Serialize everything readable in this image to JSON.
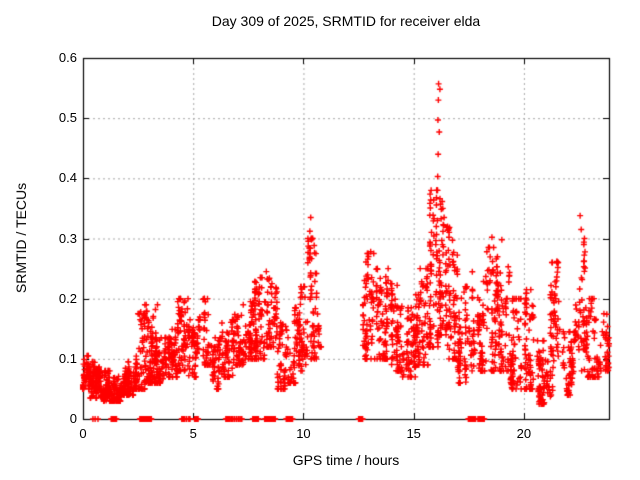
{
  "title": "Day 309 of 2025, SRMTID for receiver elda",
  "x_axis": {
    "label": "GPS time / hours"
  },
  "y_axis": {
    "label": "SRMTID / TECUs"
  },
  "chart_data": {
    "type": "scatter",
    "title": "Day 309 of 2025, SRMTID for receiver elda",
    "xlabel": "GPS time / hours",
    "ylabel": "SRMTID / TECUs",
    "marker": "plus",
    "marker_color": "#ff0000",
    "grid": true,
    "grid_color": "#a8a8a8",
    "border_color": "#000000",
    "xlim": [
      0,
      23.86
    ],
    "ylim": [
      0,
      0.6
    ],
    "x_ticks": [
      {
        "v": 0,
        "t": "0"
      },
      {
        "v": 5,
        "t": "5"
      },
      {
        "v": 10,
        "t": "10"
      },
      {
        "v": 15,
        "t": "15"
      },
      {
        "v": 20,
        "t": "20"
      }
    ],
    "y_ticks": [
      {
        "v": 0,
        "t": "0"
      },
      {
        "v": 0.1,
        "t": "0.1"
      },
      {
        "v": 0.2,
        "t": "0.2"
      },
      {
        "v": 0.3,
        "t": "0.3"
      },
      {
        "v": 0.4,
        "t": "0.4"
      },
      {
        "v": 0.5,
        "t": "0.5"
      },
      {
        "v": 0.6,
        "t": "0.6"
      }
    ],
    "seed": 7,
    "cloud_bins": [
      [
        0.0,
        0.3,
        0.05,
        0.105,
        55
      ],
      [
        0.3,
        0.8,
        0.035,
        0.095,
        95
      ],
      [
        0.8,
        1.3,
        0.03,
        0.08,
        85
      ],
      [
        1.3,
        1.8,
        0.03,
        0.075,
        80
      ],
      [
        1.8,
        2.3,
        0.04,
        0.095,
        75
      ],
      [
        2.3,
        2.8,
        0.05,
        0.175,
        75
      ],
      [
        2.8,
        3.3,
        0.06,
        0.19,
        85
      ],
      [
        3.3,
        3.8,
        0.06,
        0.135,
        70
      ],
      [
        3.8,
        4.3,
        0.07,
        0.155,
        70
      ],
      [
        4.3,
        4.8,
        0.08,
        0.2,
        75
      ],
      [
        4.8,
        5.3,
        0.07,
        0.165,
        60
      ],
      [
        5.3,
        5.8,
        0.09,
        0.2,
        40
      ],
      [
        5.8,
        6.3,
        0.05,
        0.135,
        50
      ],
      [
        6.3,
        6.8,
        0.07,
        0.165,
        60
      ],
      [
        6.8,
        7.3,
        0.09,
        0.19,
        60
      ],
      [
        7.3,
        7.8,
        0.1,
        0.21,
        60
      ],
      [
        7.8,
        8.3,
        0.1,
        0.235,
        65
      ],
      [
        8.3,
        8.8,
        0.12,
        0.245,
        60
      ],
      [
        8.8,
        9.3,
        0.05,
        0.16,
        55
      ],
      [
        9.3,
        9.8,
        0.06,
        0.185,
        55
      ],
      [
        9.8,
        10.2,
        0.08,
        0.22,
        50
      ],
      [
        10.2,
        10.6,
        0.1,
        0.3,
        55
      ],
      [
        10.6,
        10.8,
        0.12,
        0.18,
        12
      ],
      [
        12.7,
        13.3,
        0.1,
        0.275,
        70
      ],
      [
        13.3,
        13.9,
        0.1,
        0.25,
        80
      ],
      [
        13.9,
        14.5,
        0.08,
        0.225,
        80
      ],
      [
        14.5,
        15.1,
        0.07,
        0.185,
        70
      ],
      [
        15.1,
        15.7,
        0.09,
        0.25,
        70
      ],
      [
        15.7,
        16.1,
        0.12,
        0.38,
        70
      ],
      [
        16.1,
        16.5,
        0.14,
        0.375,
        65
      ],
      [
        16.5,
        17.0,
        0.1,
        0.32,
        65
      ],
      [
        17.0,
        17.6,
        0.06,
        0.22,
        70
      ],
      [
        17.6,
        18.2,
        0.08,
        0.245,
        75
      ],
      [
        18.2,
        18.8,
        0.08,
        0.285,
        70
      ],
      [
        18.8,
        19.4,
        0.08,
        0.27,
        65
      ],
      [
        19.4,
        20.0,
        0.05,
        0.2,
        70
      ],
      [
        20.0,
        20.6,
        0.05,
        0.215,
        65
      ],
      [
        20.6,
        21.2,
        0.025,
        0.13,
        75
      ],
      [
        21.2,
        21.7,
        0.04,
        0.26,
        60
      ],
      [
        21.7,
        22.3,
        0.04,
        0.145,
        65
      ],
      [
        22.3,
        22.9,
        0.08,
        0.3,
        60
      ],
      [
        22.9,
        23.4,
        0.07,
        0.2,
        55
      ],
      [
        23.4,
        23.86,
        0.08,
        0.175,
        40
      ]
    ],
    "outlier_points": [
      [
        16.13,
        0.557
      ],
      [
        16.19,
        0.548
      ],
      [
        16.12,
        0.53
      ],
      [
        16.1,
        0.497
      ],
      [
        16.16,
        0.477
      ],
      [
        16.11,
        0.44
      ],
      [
        16.09,
        0.403
      ],
      [
        16.32,
        0.35
      ],
      [
        16.38,
        0.335
      ],
      [
        10.33,
        0.335
      ],
      [
        10.29,
        0.312
      ],
      [
        10.36,
        0.298
      ],
      [
        10.42,
        0.3
      ],
      [
        22.55,
        0.338
      ],
      [
        22.6,
        0.315
      ],
      [
        22.72,
        0.29
      ],
      [
        18.55,
        0.302
      ],
      [
        19.0,
        0.298
      ],
      [
        21.5,
        0.262
      ],
      [
        13.05,
        0.278
      ],
      [
        5.55,
        0.195
      ],
      [
        4.62,
        0.196
      ],
      [
        3.38,
        0.19
      ],
      [
        2.62,
        0.178
      ]
    ],
    "zero_value_runs_hours": [
      [
        0.45,
        0.45
      ],
      [
        0.55,
        0.55
      ],
      [
        0.68,
        0.68
      ],
      [
        1.28,
        1.55
      ],
      [
        2.58,
        3.12
      ],
      [
        4.48,
        4.62
      ],
      [
        4.68,
        4.72
      ],
      [
        4.8,
        4.88
      ],
      [
        5.06,
        5.24
      ],
      [
        6.48,
        6.68
      ],
      [
        6.74,
        6.8
      ],
      [
        6.86,
        6.9
      ],
      [
        6.96,
        7.0
      ],
      [
        7.06,
        7.1
      ],
      [
        7.16,
        7.22
      ],
      [
        7.7,
        7.97
      ],
      [
        8.24,
        8.72
      ],
      [
        9.22,
        9.52
      ],
      [
        12.5,
        12.7
      ],
      [
        17.48,
        17.82
      ],
      [
        17.92,
        18.22
      ]
    ]
  }
}
